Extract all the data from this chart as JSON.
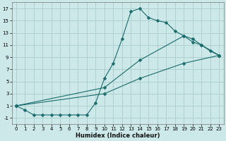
{
  "xlabel": "Humidex (Indice chaleur)",
  "bg_color": "#cce8e8",
  "grid_color": "#aacccc",
  "line_color": "#1a6b6b",
  "xlim": [
    -0.5,
    23.5
  ],
  "ylim": [
    -2.0,
    18.0
  ],
  "xticks": [
    0,
    1,
    2,
    3,
    4,
    5,
    6,
    7,
    8,
    9,
    10,
    11,
    12,
    13,
    14,
    15,
    16,
    17,
    18,
    19,
    20,
    21,
    22,
    23
  ],
  "yticks": [
    -1,
    1,
    3,
    5,
    7,
    9,
    11,
    13,
    15,
    17
  ],
  "line1_x": [
    0,
    1,
    2,
    3,
    4,
    5,
    6,
    7,
    8,
    9,
    10,
    11,
    12,
    13,
    14,
    15,
    16,
    17,
    18,
    19,
    20,
    21,
    22,
    23
  ],
  "line1_y": [
    1.0,
    0.3,
    -0.5,
    -0.5,
    -0.5,
    -0.5,
    -0.5,
    -0.5,
    -0.5,
    1.5,
    5.5,
    8.0,
    12.0,
    16.5,
    17.0,
    15.5,
    15.0,
    14.7,
    13.3,
    12.5,
    11.5,
    11.0,
    10.0,
    9.3
  ],
  "line2_x": [
    0,
    10,
    14,
    19,
    20,
    21,
    23
  ],
  "line2_y": [
    1.0,
    4.0,
    8.5,
    12.5,
    12.0,
    11.0,
    9.3
  ],
  "line3_x": [
    0,
    10,
    14,
    19,
    23
  ],
  "line3_y": [
    1.0,
    3.0,
    5.5,
    8.0,
    9.3
  ],
  "marker": "D",
  "marker_size": 2.5
}
